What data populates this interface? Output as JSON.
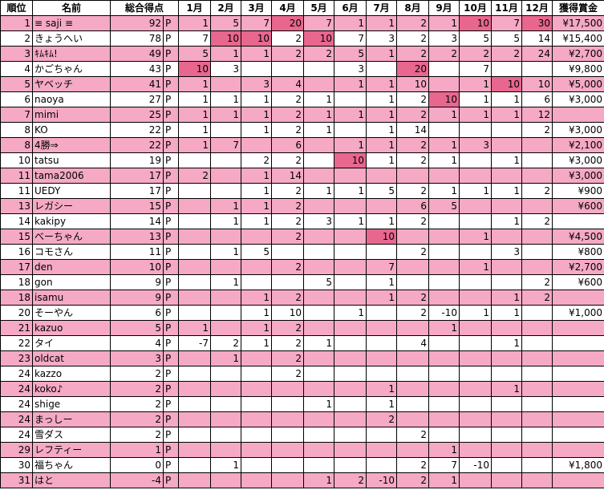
{
  "table": {
    "headers": [
      "順位",
      "名前",
      "総合得点",
      "1月",
      "2月",
      "3月",
      "4月",
      "5月",
      "6月",
      "7月",
      "8月",
      "9月",
      "10月",
      "11月",
      "12月",
      "獲得賞金"
    ],
    "row_colors": [
      "#f5a9c5",
      "#ffffff"
    ],
    "highlight_color": "#e8678f",
    "rows": [
      {
        "rank": 1,
        "name": "≡ saji ≡",
        "score": 92,
        "unit": "P",
        "months": [
          1,
          5,
          7,
          20,
          7,
          1,
          1,
          2,
          1,
          10,
          7,
          30
        ],
        "highlight": [
          3,
          9,
          11
        ],
        "prize": "¥17,500"
      },
      {
        "rank": 2,
        "name": "きょうへい",
        "score": 78,
        "unit": "P",
        "months": [
          7,
          10,
          10,
          2,
          10,
          7,
          3,
          2,
          3,
          5,
          5,
          14
        ],
        "highlight": [
          1,
          2,
          4
        ],
        "prize": "¥15,400"
      },
      {
        "rank": 3,
        "name": "ｷﾑｷﾑ!",
        "score": 49,
        "unit": "P",
        "months": [
          5,
          1,
          1,
          2,
          2,
          5,
          1,
          2,
          2,
          2,
          2,
          24
        ],
        "prize": "¥2,700"
      },
      {
        "rank": 4,
        "name": "かごちゃん",
        "score": 43,
        "unit": "P",
        "months": [
          10,
          3,
          null,
          null,
          null,
          3,
          null,
          20,
          null,
          7,
          null,
          null
        ],
        "highlight": [
          0,
          7
        ],
        "prize": "¥9,800"
      },
      {
        "rank": 5,
        "name": "ヤベッチ",
        "score": 41,
        "unit": "P",
        "months": [
          1,
          null,
          3,
          4,
          null,
          1,
          1,
          10,
          null,
          1,
          10,
          10
        ],
        "highlight": [
          10
        ],
        "prize": "¥5,000"
      },
      {
        "rank": 6,
        "name": "naoya",
        "score": 27,
        "unit": "P",
        "months": [
          1,
          1,
          1,
          2,
          1,
          null,
          1,
          2,
          10,
          1,
          1,
          6
        ],
        "highlight": [
          8
        ],
        "prize": "¥3,000"
      },
      {
        "rank": 7,
        "name": "mimi",
        "score": 25,
        "unit": "P",
        "months": [
          1,
          1,
          1,
          2,
          1,
          1,
          1,
          2,
          1,
          1,
          1,
          12
        ],
        "prize": null
      },
      {
        "rank": 8,
        "name": "KO",
        "score": 22,
        "unit": "P",
        "months": [
          1,
          null,
          1,
          2,
          1,
          null,
          1,
          14,
          null,
          null,
          null,
          2
        ],
        "prize": "¥3,000"
      },
      {
        "rank": 8,
        "name": "4勝⇒",
        "score": 22,
        "unit": "P",
        "months": [
          1,
          7,
          null,
          6,
          null,
          1,
          1,
          2,
          1,
          3,
          null,
          null
        ],
        "prize": "¥2,100"
      },
      {
        "rank": 10,
        "name": "tatsu",
        "score": 19,
        "unit": "P",
        "months": [
          null,
          null,
          2,
          2,
          null,
          10,
          1,
          2,
          1,
          null,
          1,
          null
        ],
        "highlight": [
          5
        ],
        "prize": "¥3,000"
      },
      {
        "rank": 11,
        "name": "tama2006",
        "score": 17,
        "unit": "P",
        "months": [
          2,
          null,
          1,
          14,
          null,
          null,
          null,
          null,
          null,
          null,
          null,
          null
        ],
        "prize": "¥3,000"
      },
      {
        "rank": 11,
        "name": "UEDY",
        "score": 17,
        "unit": "P",
        "months": [
          null,
          null,
          1,
          2,
          1,
          1,
          5,
          2,
          1,
          1,
          1,
          2
        ],
        "prize": "¥900"
      },
      {
        "rank": 13,
        "name": "レガシー",
        "score": 15,
        "unit": "P",
        "months": [
          null,
          1,
          1,
          2,
          null,
          null,
          null,
          6,
          5,
          null,
          null,
          null
        ],
        "prize": "¥600"
      },
      {
        "rank": 14,
        "name": "kakipy",
        "score": 14,
        "unit": "P",
        "months": [
          null,
          1,
          1,
          2,
          3,
          1,
          1,
          2,
          null,
          null,
          1,
          2
        ],
        "prize": null
      },
      {
        "rank": 15,
        "name": "べーちゃん",
        "score": 13,
        "unit": "P",
        "months": [
          null,
          null,
          null,
          2,
          null,
          null,
          10,
          null,
          null,
          1,
          null,
          null
        ],
        "highlight": [
          6
        ],
        "prize": "¥4,500"
      },
      {
        "rank": 16,
        "name": "コモさん",
        "score": 11,
        "unit": "P",
        "months": [
          null,
          1,
          5,
          null,
          null,
          null,
          null,
          2,
          null,
          null,
          3,
          null
        ],
        "prize": "¥800"
      },
      {
        "rank": 17,
        "name": "den",
        "score": 10,
        "unit": "P",
        "months": [
          null,
          null,
          null,
          2,
          null,
          null,
          7,
          null,
          null,
          1,
          null,
          null
        ],
        "prize": "¥2,700"
      },
      {
        "rank": 18,
        "name": "gon",
        "score": 9,
        "unit": "P",
        "months": [
          null,
          1,
          null,
          null,
          5,
          null,
          1,
          null,
          null,
          null,
          null,
          2
        ],
        "prize": "¥600"
      },
      {
        "rank": 18,
        "name": "isamu",
        "score": 9,
        "unit": "P",
        "months": [
          null,
          null,
          1,
          2,
          null,
          null,
          1,
          2,
          null,
          null,
          1,
          2
        ],
        "prize": null
      },
      {
        "rank": 20,
        "name": "そーやん",
        "score": 6,
        "unit": "P",
        "months": [
          null,
          null,
          1,
          10,
          null,
          1,
          null,
          2,
          -10,
          1,
          1,
          null
        ],
        "prize": "¥1,000"
      },
      {
        "rank": 21,
        "name": "kazuo",
        "score": 5,
        "unit": "P",
        "months": [
          1,
          null,
          1,
          2,
          null,
          null,
          null,
          null,
          1,
          null,
          null,
          null
        ],
        "prize": null
      },
      {
        "rank": 22,
        "name": "タイ",
        "score": 4,
        "unit": "P",
        "months": [
          -7,
          2,
          1,
          2,
          1,
          null,
          null,
          4,
          null,
          null,
          1,
          null
        ],
        "prize": null
      },
      {
        "rank": 23,
        "name": "oldcat",
        "score": 3,
        "unit": "P",
        "months": [
          null,
          1,
          null,
          2,
          null,
          null,
          null,
          null,
          null,
          null,
          null,
          null
        ],
        "prize": null
      },
      {
        "rank": 24,
        "name": "kazzo",
        "score": 2,
        "unit": "P",
        "months": [
          null,
          null,
          null,
          2,
          null,
          null,
          null,
          null,
          null,
          null,
          null,
          null
        ],
        "prize": null
      },
      {
        "rank": 24,
        "name": "koko♪",
        "score": 2,
        "unit": "P",
        "months": [
          null,
          null,
          null,
          null,
          null,
          null,
          1,
          null,
          null,
          null,
          1,
          null
        ],
        "prize": null
      },
      {
        "rank": 24,
        "name": "shige",
        "score": 2,
        "unit": "P",
        "months": [
          null,
          null,
          null,
          null,
          1,
          null,
          1,
          null,
          null,
          null,
          null,
          null
        ],
        "prize": null
      },
      {
        "rank": 24,
        "name": "まっしー",
        "score": 2,
        "unit": "P",
        "months": [
          null,
          null,
          null,
          null,
          null,
          null,
          2,
          null,
          null,
          null,
          null,
          null
        ],
        "prize": null
      },
      {
        "rank": 24,
        "name": "雪ダス",
        "score": 2,
        "unit": "P",
        "months": [
          null,
          null,
          null,
          null,
          null,
          null,
          null,
          2,
          null,
          null,
          null,
          null
        ],
        "prize": null
      },
      {
        "rank": 29,
        "name": "レフティー",
        "score": 1,
        "unit": "P",
        "months": [
          null,
          null,
          null,
          null,
          null,
          null,
          null,
          null,
          1,
          null,
          null,
          null
        ],
        "prize": null
      },
      {
        "rank": 30,
        "name": "福ちゃん",
        "score": 0,
        "unit": "P",
        "months": [
          null,
          1,
          null,
          null,
          null,
          null,
          null,
          2,
          7,
          -10,
          null,
          null
        ],
        "prize": "¥1,800"
      },
      {
        "rank": 31,
        "name": "はと",
        "score": -4,
        "unit": "P",
        "months": [
          null,
          null,
          null,
          null,
          1,
          2,
          -10,
          2,
          1,
          null,
          null,
          null
        ],
        "prize": null
      }
    ]
  }
}
